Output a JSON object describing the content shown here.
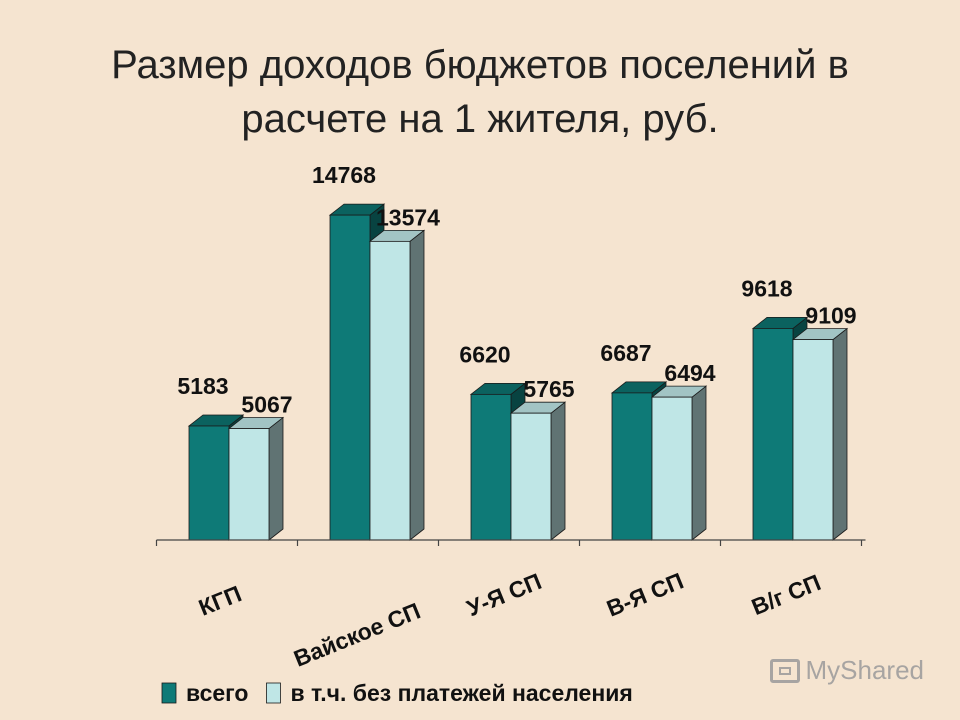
{
  "slide": {
    "title_line1": "Размер доходов бюджетов поселений в",
    "title_line2": "расчете на 1 жителя, руб."
  },
  "watermark": {
    "text": "MyShared",
    "icon": "projector-icon"
  },
  "colors": {
    "background": "#f5e4d0",
    "series_total": "#0e7a77",
    "series_excl": "#bfe6e6"
  },
  "chart_data": {
    "type": "bar",
    "style": "3d-clustered",
    "categories": [
      "КГП",
      "Вайское СП",
      "У-Я СП",
      "В-Я СП",
      "В/г СП"
    ],
    "series": [
      {
        "name": "всего",
        "values": [
          5183,
          14768,
          6620,
          6687,
          9618
        ]
      },
      {
        "name": "в т.ч. без платежей населения",
        "values": [
          5067,
          13574,
          5765,
          6494,
          9109
        ]
      }
    ],
    "data_labels": true,
    "ylim": [
      0,
      16000
    ],
    "y_axis_visible": false,
    "grid": false,
    "legend_position": "bottom"
  }
}
